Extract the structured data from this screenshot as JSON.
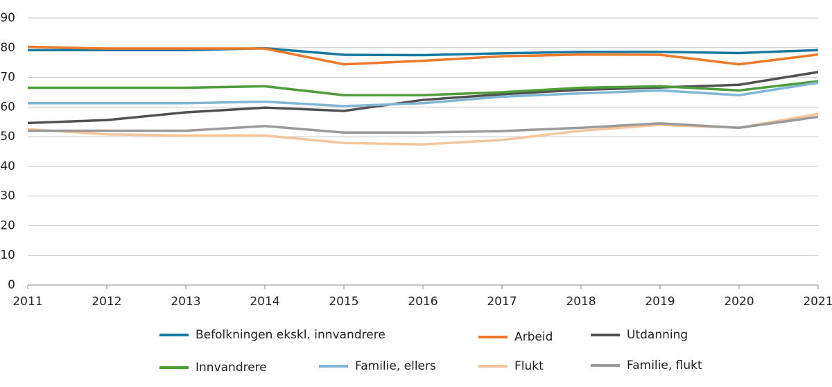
{
  "chart_data": {
    "type": "line",
    "x": [
      2011,
      2012,
      2013,
      2014,
      2015,
      2016,
      2017,
      2018,
      2019,
      2020,
      2021
    ],
    "xlim": [
      2011,
      2021
    ],
    "xticks": [
      2011,
      2012,
      2013,
      2014,
      2015,
      2016,
      2017,
      2018,
      2019,
      2020,
      2021
    ],
    "ylim": [
      0,
      90
    ],
    "yticks": [
      0,
      10,
      20,
      30,
      40,
      50,
      60,
      70,
      80,
      90
    ],
    "grid": true,
    "series": [
      {
        "name": "Befolkningen ekskl. innvandrere",
        "color": "#17799f",
        "values": [
          79.2,
          79.2,
          79.2,
          79.8,
          77.6,
          77.5,
          78.1,
          78.6,
          78.6,
          78.2,
          79.2
        ]
      },
      {
        "name": "Arbeid",
        "color": "#ec7a2a",
        "values": [
          80.3,
          79.7,
          79.7,
          79.7,
          74.4,
          75.6,
          77.1,
          77.7,
          77.6,
          74.4,
          77.7
        ]
      },
      {
        "name": "Utdanning",
        "color": "#505050",
        "values": [
          54.6,
          55.6,
          58.2,
          59.8,
          58.7,
          62.4,
          64.3,
          65.8,
          66.6,
          67.5,
          71.8
        ]
      },
      {
        "name": "Innvandrere",
        "color": "#4e9c3a",
        "values": [
          66.5,
          66.5,
          66.5,
          67.0,
          64.0,
          64.0,
          65.0,
          66.5,
          67.0,
          65.6,
          68.7
        ]
      },
      {
        "name": "Familie, ellers",
        "color": "#7fb6d3",
        "values": [
          61.3,
          61.3,
          61.3,
          61.8,
          60.3,
          61.3,
          63.5,
          64.6,
          65.6,
          64.0,
          68.2
        ]
      },
      {
        "name": "Flukt",
        "color": "#f5c69b",
        "values": [
          52.5,
          50.8,
          50.4,
          50.4,
          47.9,
          47.4,
          48.9,
          52.0,
          54.0,
          53.0,
          57.7
        ]
      },
      {
        "name": "Familie, flukt",
        "color": "#9a9a9a",
        "values": [
          52.0,
          52.0,
          52.0,
          53.6,
          51.4,
          51.4,
          51.9,
          53.0,
          54.5,
          53.0,
          56.7
        ]
      }
    ]
  }
}
